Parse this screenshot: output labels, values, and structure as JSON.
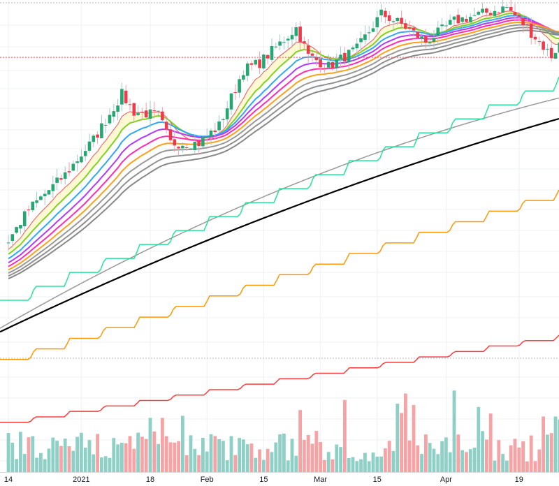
{
  "chart_data": {
    "type": "candlestick",
    "title": "",
    "x_ticks": [
      {
        "label": "14",
        "day": 0
      },
      {
        "label": "2021",
        "day": 18
      },
      {
        "label": "18",
        "day": 35
      },
      {
        "label": "Feb",
        "day": 49
      },
      {
        "label": "15",
        "day": 63
      },
      {
        "label": "Mar",
        "day": 77
      },
      {
        "label": "15",
        "day": 91
      },
      {
        "label": "Apr",
        "day": 108
      },
      {
        "label": "19",
        "day": 126
      }
    ],
    "ylim": [
      0,
      100
    ],
    "close_waypoints": [
      [
        -60,
        10
      ],
      [
        -20,
        22
      ],
      [
        0,
        33.7
      ],
      [
        5,
        42.3
      ],
      [
        14,
        51.9
      ],
      [
        21,
        61.5
      ],
      [
        28,
        74
      ],
      [
        31,
        69.2
      ],
      [
        37,
        68.3
      ],
      [
        40,
        60.6
      ],
      [
        47,
        60.6
      ],
      [
        52,
        65.4
      ],
      [
        58,
        80.8
      ],
      [
        62,
        82.7
      ],
      [
        71,
        92.3
      ],
      [
        74,
        84.6
      ],
      [
        79,
        81.7
      ],
      [
        86,
        86.5
      ],
      [
        92,
        96.2
      ],
      [
        97,
        93.3
      ],
      [
        103,
        88.5
      ],
      [
        110,
        94.2
      ],
      [
        123,
        98
      ],
      [
        128,
        92.3
      ],
      [
        134,
        84.6
      ],
      [
        138,
        91
      ]
    ],
    "num_days": 138,
    "ema_ribbon": [
      {
        "period": 8,
        "color": "#f7525f"
      },
      {
        "period": 13,
        "color": "#7ed321"
      },
      {
        "period": 18,
        "color": "#2fa8f5"
      },
      {
        "period": 23,
        "color": "#b23aff"
      },
      {
        "period": 28,
        "color": "#ff2db4"
      },
      {
        "period": 33,
        "color": "#ff9f1a"
      },
      {
        "period": 38,
        "color": "#999999"
      },
      {
        "period": 43,
        "color": "#909090"
      },
      {
        "period": 48,
        "color": "#888888"
      }
    ],
    "long_lines": [
      {
        "name": "gray-ma",
        "color": "#9a9a9a",
        "start": 9.6,
        "end": 73,
        "curve": 0.6,
        "step": false
      },
      {
        "name": "black-ma",
        "color": "#000000",
        "start": 8.6,
        "end": 67.3,
        "curve": 0.75,
        "step": false
      },
      {
        "name": "green-step",
        "color": "#26e39b",
        "start": 17.3,
        "end": 78.8,
        "steps": 16,
        "step": true
      },
      {
        "name": "orange-step",
        "color": "#ff9800",
        "start": 1,
        "end": 47.7,
        "steps": 16,
        "step": true
      },
      {
        "name": "red-step",
        "color": "#ff3b3b",
        "start": -16.3,
        "end": 7.7,
        "steps": 16,
        "step": true
      }
    ],
    "reference_line": 84.2,
    "colors": {
      "up": "#26a671",
      "down": "#ef3a4c",
      "vol_up": "#8fd0c6",
      "vol_down": "#f6a3a6"
    }
  }
}
